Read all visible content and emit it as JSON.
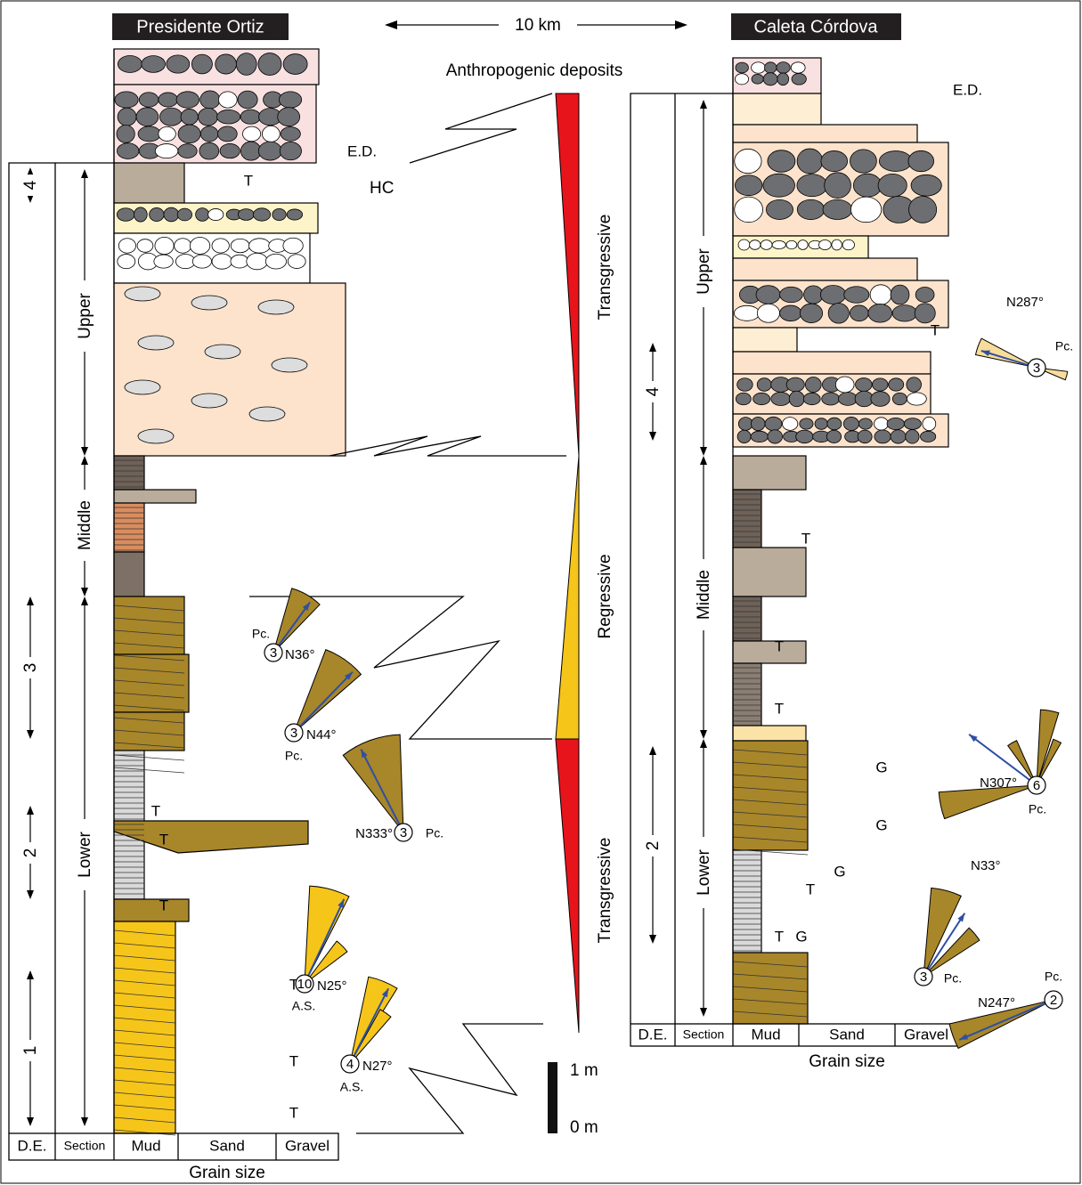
{
  "header": {
    "left_title": "Presidente Ortiz",
    "right_title": "Caleta Córdova",
    "distance": "10 km"
  },
  "sequence": {
    "top_label": "Anthropogenic deposits",
    "phases": [
      "Transgressive",
      "Regressive",
      "Transgressive"
    ]
  },
  "scale": [
    "1 m",
    "0 m"
  ],
  "left_column": {
    "ed": "E.D.",
    "hc": "HC",
    "units": [
      "Upper",
      "Middle",
      "Lower"
    ],
    "de": [
      "4",
      "3",
      "2",
      "1"
    ],
    "axis": {
      "de": "D.E.",
      "section": "Section",
      "classes": [
        "Mud",
        "Sand",
        "Gravel"
      ],
      "title": "Grain size"
    },
    "letters": [
      "T",
      "T",
      "T",
      "T",
      "T",
      "T",
      "T"
    ],
    "paleocurrents": [
      {
        "count": "3",
        "azimuth": "N36°",
        "kind": "Pc."
      },
      {
        "count": "3",
        "azimuth": "N44°",
        "kind": "Pc."
      },
      {
        "count": "3",
        "azimuth": "N333°",
        "kind": "Pc."
      },
      {
        "count": "10",
        "azimuth": "N25°",
        "kind": "A.S."
      },
      {
        "count": "4",
        "azimuth": "N27°",
        "kind": "A.S."
      }
    ]
  },
  "right_column": {
    "ed": "E.D.",
    "units": [
      "Upper",
      "Middle",
      "Lower"
    ],
    "de": [
      "4",
      "2"
    ],
    "axis": {
      "de": "D.E.",
      "section": "Section",
      "classes": [
        "Mud",
        "Sand",
        "Gravel"
      ],
      "title": "Grain size"
    },
    "letters": [
      "T",
      "T",
      "T",
      "T",
      "T",
      "T",
      "G",
      "G",
      "G",
      "G"
    ],
    "paleocurrents": [
      {
        "count": "3",
        "azimuth": "N287°",
        "kind": "Pc."
      },
      {
        "count": "6",
        "azimuth": "N307°",
        "kind": "Pc."
      },
      {
        "count": "3",
        "azimuth": "N33°",
        "kind": "Pc."
      },
      {
        "count": "2",
        "azimuth": "N247°",
        "kind": "Pc."
      }
    ]
  }
}
